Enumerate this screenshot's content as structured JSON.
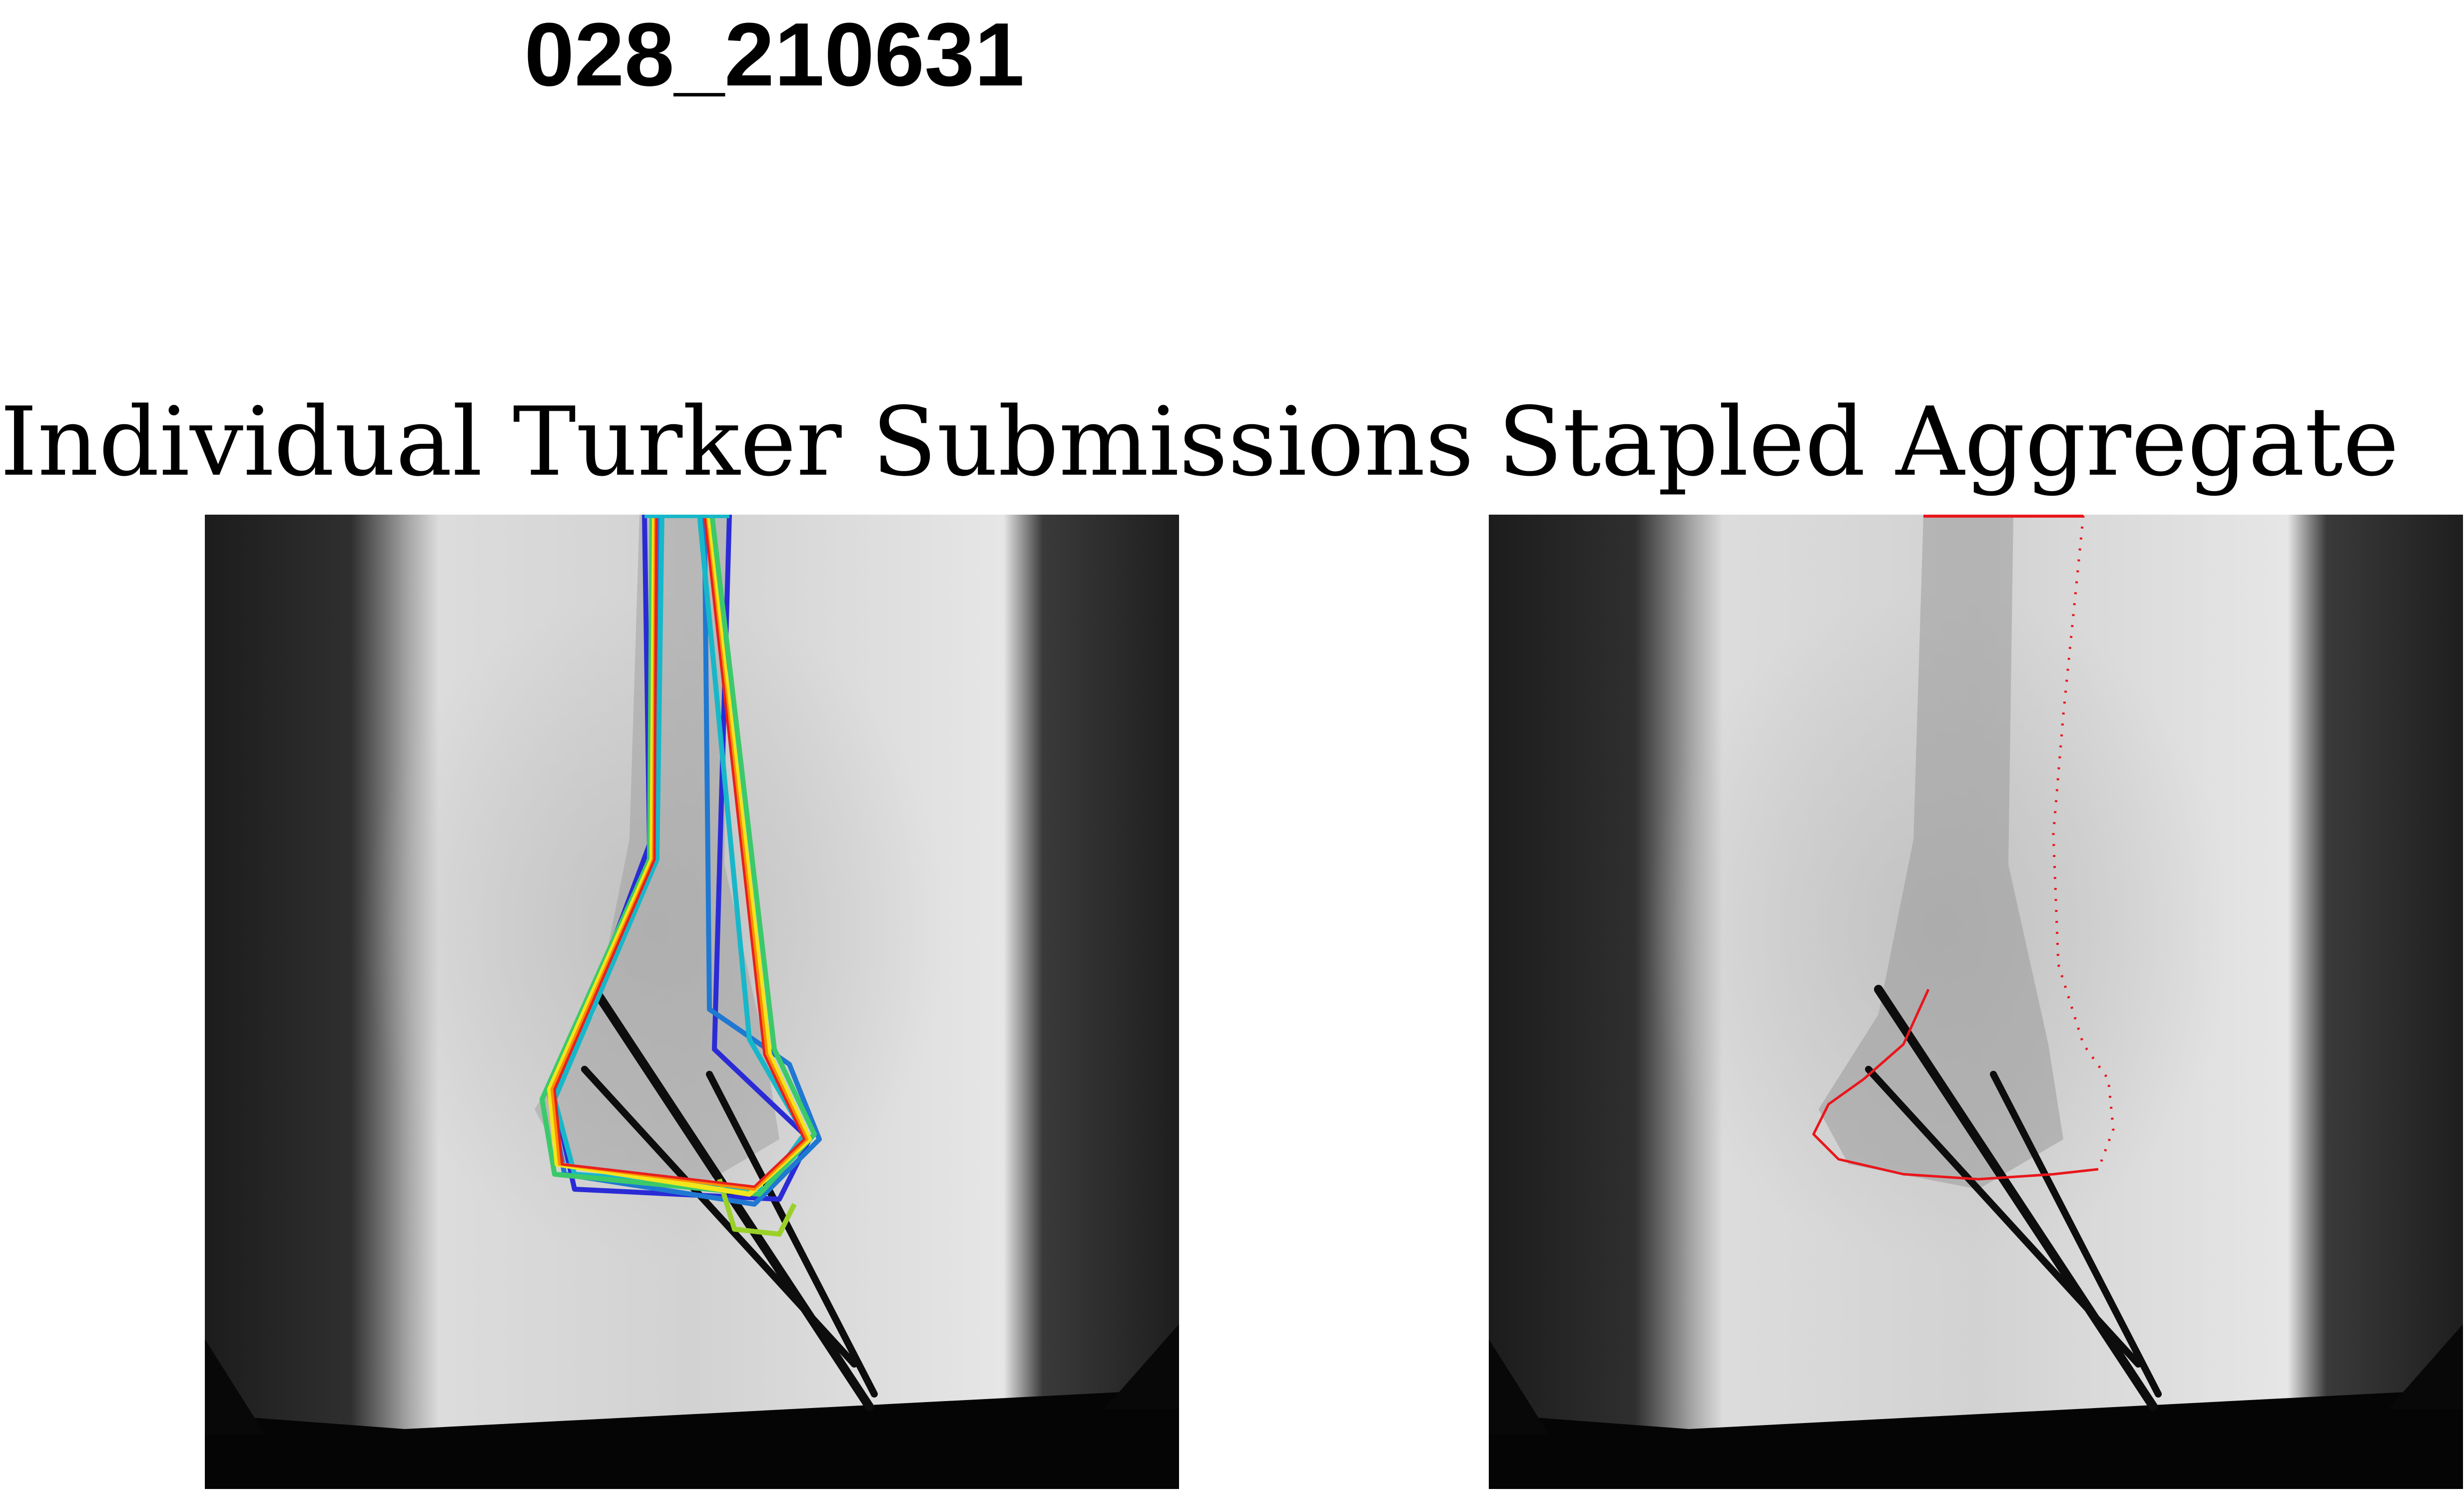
{
  "figure": {
    "title": "028_210631",
    "panels": [
      {
        "title": "Individual Turker Submissions"
      },
      {
        "title": "Stapled Aggregate"
      }
    ]
  },
  "image_content": "Lateral X-ray of a limb bone (distal end) with three needles/pins inserted diagonally through the lower portion, shown on a gray background with black borders.",
  "annotations": {
    "left_panel_colors": [
      "#2b2bd6",
      "#1f78d1",
      "#17b7c9",
      "#3cc96a",
      "#9ad028",
      "#f2e51c",
      "#ff8c00",
      "#e6201e"
    ],
    "right_panel_color": "#e8161b"
  }
}
